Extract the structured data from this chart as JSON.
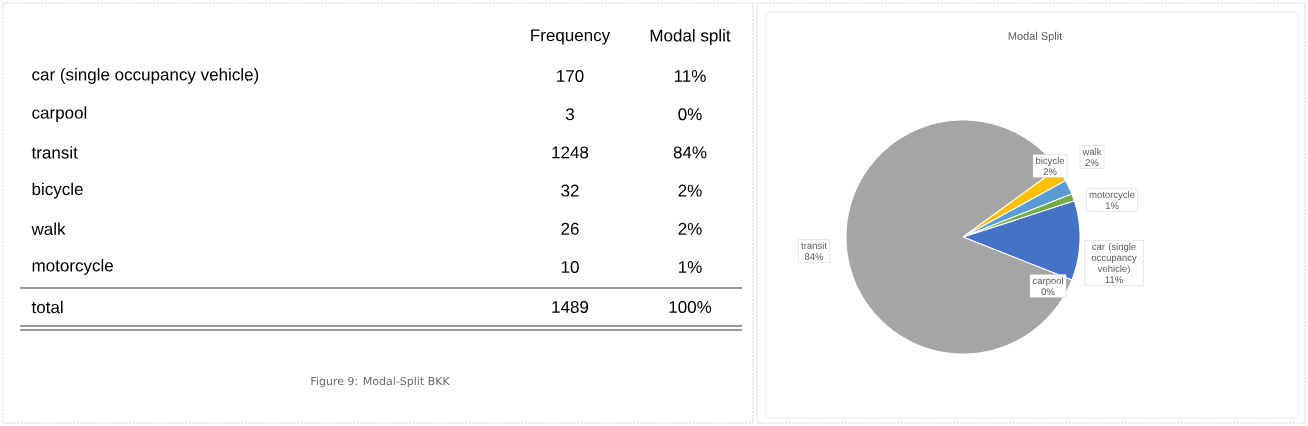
{
  "chart_data": [
    {
      "type": "other",
      "categories": [
        "car (single occupancy vehicle)",
        "carpool",
        "transit",
        "bicycle",
        "walk",
        "motorcycle"
      ],
      "series": [
        {
          "name": "Frequency",
          "values": [
            170,
            3,
            1248,
            32,
            26,
            10
          ]
        }
      ],
      "data_labels": true,
      "annotations": [
        "Modal split",
        "11%",
        "0%",
        "84%",
        "2%",
        "2%",
        "1%",
        "total",
        "1489",
        "100%",
        "Figure 9: Modal-Split BKK"
      ]
    },
    {
      "type": "pie",
      "title": "Modal Split",
      "categories": [
        "car (single occupancy vehicle)",
        "carpool",
        "transit",
        "bicycle",
        "walk",
        "motorcycle"
      ],
      "values": [
        11,
        0,
        84,
        2,
        2,
        1
      ],
      "value_labels": [
        "11%",
        "0%",
        "84%",
        "2%",
        "2%",
        "1%"
      ],
      "colors": [
        "#4472c4",
        "#ed7d31",
        "#a5a5a5",
        "#ffc000",
        "#5b9bd5",
        "#70ad47"
      ]
    }
  ]
}
